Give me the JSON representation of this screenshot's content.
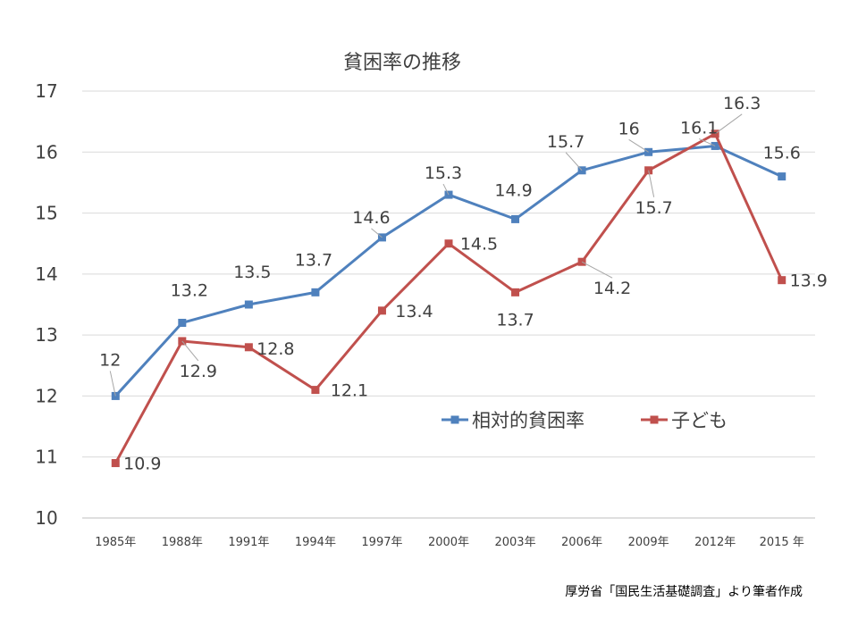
{
  "title": "貧困率の推移",
  "source": "厚労省「国民生活基礎調査」より筆者作成",
  "chart_data": {
    "type": "line",
    "title": "貧困率の推移",
    "categories": [
      "1985年",
      "1988年",
      "1991年",
      "1994年",
      "1997年",
      "2000年",
      "2003年",
      "2006年",
      "2009年",
      "2012年",
      "2015 年"
    ],
    "ylim": [
      10,
      17
    ],
    "yticks": [
      10,
      11,
      12,
      13,
      14,
      15,
      16,
      17
    ],
    "grid": true,
    "legend_position": "inside-middle-right",
    "series": [
      {
        "name": "相対的貧困率",
        "color": "#4F81BD",
        "values": [
          12,
          13.2,
          13.5,
          13.7,
          14.6,
          15.3,
          14.9,
          15.7,
          16,
          16.1,
          15.6
        ]
      },
      {
        "name": "子ども",
        "color": "#C0504D",
        "values": [
          10.9,
          12.9,
          12.8,
          12.1,
          13.4,
          14.5,
          13.7,
          14.2,
          15.7,
          16.3,
          13.9
        ]
      }
    ]
  }
}
